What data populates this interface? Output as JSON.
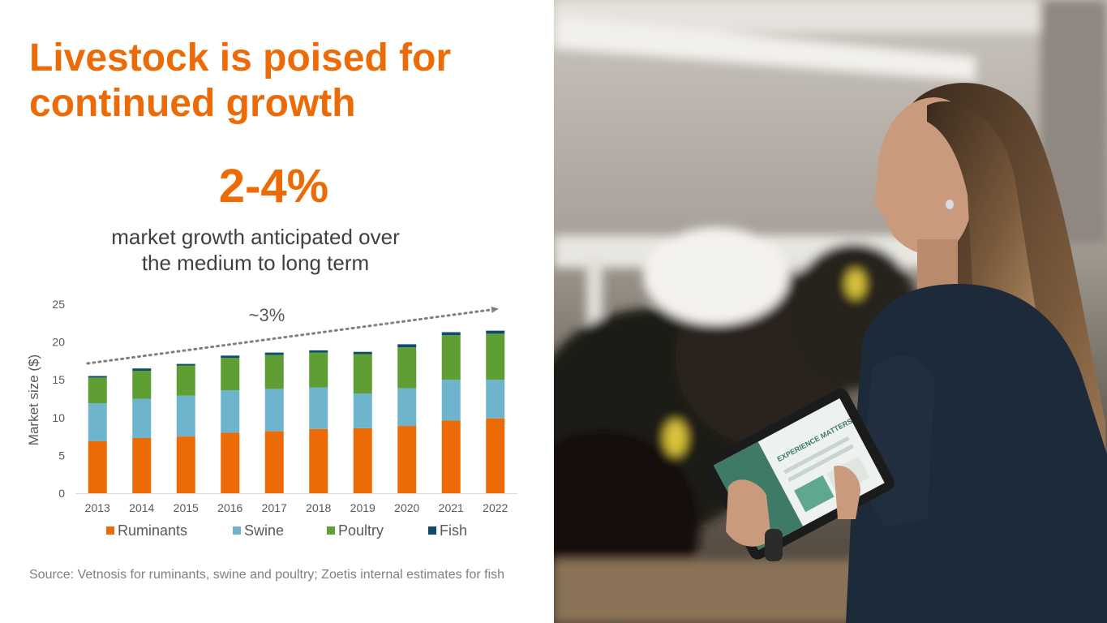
{
  "slide": {
    "title": "Livestock is poised for\ncontinued growth",
    "big_stat": "2-4%",
    "big_stat_caption": "market growth anticipated over\nthe medium to long term",
    "source": "Source: Vetnosis for ruminants, swine and poultry; Zoetis internal estimates for fish"
  },
  "photo": {
    "tablet_screen_text": "EXPERIENCE MATTERS"
  },
  "chart_data": {
    "type": "bar",
    "stacked": true,
    "categories": [
      "2013",
      "2014",
      "2015",
      "2016",
      "2017",
      "2018",
      "2019",
      "2020",
      "2021",
      "2022"
    ],
    "series": [
      {
        "name": "Ruminants",
        "color": "#ed6b06",
        "values": [
          6.9,
          7.3,
          7.5,
          8.0,
          8.2,
          8.5,
          8.6,
          8.9,
          9.6,
          9.9
        ]
      },
      {
        "name": "Swine",
        "color": "#6eb4cd",
        "values": [
          5.0,
          5.2,
          5.4,
          5.6,
          5.6,
          5.5,
          4.6,
          5.0,
          5.4,
          5.1
        ]
      },
      {
        "name": "Poultry",
        "color": "#5e9e32",
        "values": [
          3.4,
          3.7,
          4.0,
          4.3,
          4.5,
          4.6,
          5.2,
          5.4,
          5.9,
          6.1
        ]
      },
      {
        "name": "Fish",
        "color": "#0c4a6e",
        "values": [
          0.2,
          0.3,
          0.2,
          0.3,
          0.3,
          0.3,
          0.3,
          0.4,
          0.4,
          0.4
        ]
      }
    ],
    "ylabel": "Market size ($)",
    "ylim": [
      0,
      25
    ],
    "yticks": [
      0,
      5,
      10,
      15,
      20,
      25
    ],
    "grid": false,
    "legend_position": "bottom",
    "trend_annotation": "~3%"
  }
}
